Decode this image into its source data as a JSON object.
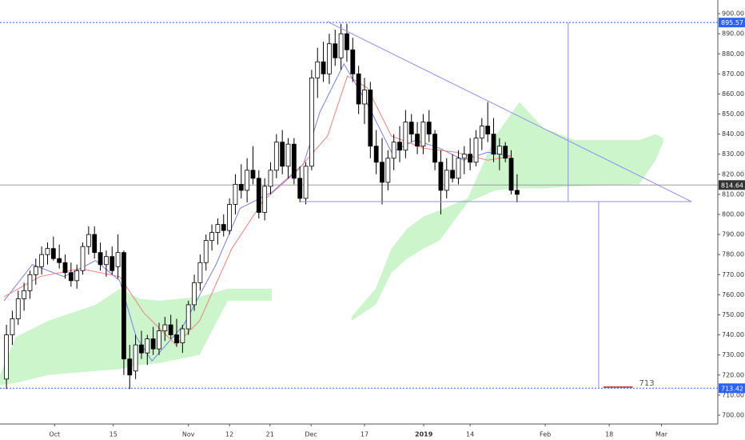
{
  "chart_data": {
    "type": "candlestick",
    "xlim": [
      -1.1,
      121.2
    ],
    "ylim": [
      695.6,
      906.8
    ],
    "xticks": [
      {
        "value": 8.2,
        "label": "Oct"
      },
      {
        "value": 18.2,
        "label": "15"
      },
      {
        "value": 31,
        "label": "Nov"
      },
      {
        "value": 38,
        "label": "12"
      },
      {
        "value": 44.9,
        "label": "21"
      },
      {
        "value": 51.9,
        "label": "Dec"
      },
      {
        "value": 61,
        "label": "17"
      },
      {
        "value": 71.1,
        "label": "2019"
      },
      {
        "value": 79,
        "label": "14"
      },
      {
        "value": 91.8,
        "label": "Feb"
      },
      {
        "value": 102.7,
        "label": "18"
      },
      {
        "value": 111.6,
        "label": "Mar"
      }
    ],
    "yticks": [
      {
        "value": 700,
        "label": "700.00"
      },
      {
        "value": 710,
        "label": "710.00"
      },
      {
        "value": 720,
        "label": "720.00"
      },
      {
        "value": 730,
        "label": "730.00"
      },
      {
        "value": 740,
        "label": "740.00"
      },
      {
        "value": 750,
        "label": "750.00"
      },
      {
        "value": 760,
        "label": "760.00"
      },
      {
        "value": 770,
        "label": "770.00"
      },
      {
        "value": 780,
        "label": "780.00"
      },
      {
        "value": 790,
        "label": "790.00"
      },
      {
        "value": 800,
        "label": "800.00"
      },
      {
        "value": 810,
        "label": "810.00"
      },
      {
        "value": 820,
        "label": "820.00"
      },
      {
        "value": 830,
        "label": "830.00"
      },
      {
        "value": 840,
        "label": "840.00"
      },
      {
        "value": 850,
        "label": "850.00"
      },
      {
        "value": 860,
        "label": "860.00"
      },
      {
        "value": 870,
        "label": "870.00"
      },
      {
        "value": 880,
        "label": "880.00"
      },
      {
        "value": 890,
        "label": "890.00"
      },
      {
        "value": 900,
        "label": "900.00"
      }
    ],
    "up_color": "#ffffff",
    "down_color": "#000000",
    "candles": [
      [
        718,
        745,
        713,
        740
      ],
      [
        740,
        752,
        735,
        748
      ],
      [
        748,
        762,
        745,
        758
      ],
      [
        758,
        766,
        752,
        762
      ],
      [
        762,
        772,
        758,
        770
      ],
      [
        770,
        778,
        765,
        774
      ],
      [
        774,
        784,
        770,
        780
      ],
      [
        780,
        786,
        775,
        783
      ],
      [
        783,
        789,
        777,
        778
      ],
      [
        778,
        785,
        773,
        776
      ],
      [
        776,
        780,
        768,
        771
      ],
      [
        771,
        776,
        764,
        767
      ],
      [
        767,
        775,
        763,
        772
      ],
      [
        772,
        786,
        770,
        784
      ],
      [
        784,
        794,
        780,
        790
      ],
      [
        790,
        794,
        778,
        781
      ],
      [
        781,
        786,
        772,
        775
      ],
      [
        775,
        782,
        769,
        779
      ],
      [
        779,
        784,
        770,
        772
      ],
      [
        774,
        790,
        768,
        781
      ],
      [
        781,
        782,
        720,
        728
      ],
      [
        728,
        735,
        713,
        720
      ],
      [
        722,
        740,
        718,
        735
      ],
      [
        735,
        742,
        728,
        731
      ],
      [
        731,
        740,
        725,
        738
      ],
      [
        738,
        744,
        730,
        733
      ],
      [
        733,
        746,
        730,
        742
      ],
      [
        742,
        749,
        737,
        745
      ],
      [
        745,
        750,
        738,
        740
      ],
      [
        740,
        748,
        734,
        736
      ],
      [
        736,
        745,
        731,
        743
      ],
      [
        743,
        757,
        740,
        755
      ],
      [
        755,
        770,
        752,
        766
      ],
      [
        766,
        780,
        762,
        776
      ],
      [
        776,
        790,
        772,
        787
      ],
      [
        787,
        795,
        782,
        791
      ],
      [
        791,
        798,
        785,
        795
      ],
      [
        795,
        800,
        789,
        792
      ],
      [
        792,
        808,
        790,
        805
      ],
      [
        805,
        820,
        800,
        815
      ],
      [
        815,
        825,
        808,
        812
      ],
      [
        812,
        828,
        806,
        822
      ],
      [
        822,
        834,
        815,
        818
      ],
      [
        818,
        822,
        798,
        801
      ],
      [
        801,
        818,
        797,
        814
      ],
      [
        814,
        826,
        810,
        822
      ],
      [
        822,
        840,
        818,
        836
      ],
      [
        836,
        842,
        820,
        824
      ],
      [
        824,
        838,
        818,
        835
      ],
      [
        835,
        838,
        815,
        818
      ],
      [
        818,
        824,
        806,
        808
      ],
      [
        808,
        826,
        805,
        824
      ],
      [
        824,
        872,
        822,
        868
      ],
      [
        868,
        883,
        858,
        876
      ],
      [
        876,
        886,
        866,
        870
      ],
      [
        870,
        890,
        865,
        885
      ],
      [
        885,
        892,
        874,
        878
      ],
      [
        878,
        895,
        872,
        890
      ],
      [
        890,
        895,
        876,
        882
      ],
      [
        882,
        888,
        866,
        870
      ],
      [
        870,
        874,
        850,
        855
      ],
      [
        855,
        868,
        845,
        862
      ],
      [
        862,
        866,
        828,
        834
      ],
      [
        834,
        842,
        820,
        826
      ],
      [
        826,
        838,
        805,
        816
      ],
      [
        816,
        832,
        812,
        828
      ],
      [
        828,
        840,
        822,
        836
      ],
      [
        836,
        844,
        826,
        832
      ],
      [
        832,
        852,
        828,
        846
      ],
      [
        846,
        850,
        836,
        840
      ],
      [
        840,
        846,
        830,
        834
      ],
      [
        834,
        850,
        830,
        846
      ],
      [
        846,
        852,
        836,
        840
      ],
      [
        840,
        842,
        822,
        826
      ],
      [
        826,
        832,
        800,
        812
      ],
      [
        812,
        828,
        808,
        822
      ],
      [
        822,
        830,
        816,
        818
      ],
      [
        818,
        832,
        815,
        828
      ],
      [
        828,
        834,
        820,
        830
      ],
      [
        830,
        838,
        822,
        826
      ],
      [
        826,
        842,
        824,
        838
      ],
      [
        838,
        848,
        832,
        844
      ],
      [
        844,
        856,
        836,
        840
      ],
      [
        840,
        848,
        826,
        830
      ],
      [
        830,
        838,
        822,
        834
      ],
      [
        834,
        836,
        826,
        828
      ],
      [
        828,
        832,
        810,
        812
      ],
      [
        812,
        820,
        806,
        810
      ]
    ],
    "lines": [
      {
        "color": "#7b7bf0",
        "x": [
          -0.4,
          4.4,
          9.8,
          15.2,
          19.3,
          22.1,
          24.8,
          30.2,
          35.7,
          39.8,
          45.2,
          50.6,
          53.4,
          57.5,
          61.5,
          65.6,
          69.7,
          73.8,
          77.9,
          82,
          86
        ],
        "values": [
          757,
          775,
          769,
          777,
          767,
          739,
          727,
          745,
          775,
          803,
          811,
          825,
          851,
          875,
          855,
          831,
          837,
          833,
          827,
          831,
          829
        ]
      },
      {
        "color": "#f08080",
        "x": [
          -0.4,
          5.7,
          12.5,
          19.3,
          23.4,
          28.9,
          32.9,
          38.4,
          43.8,
          49.3,
          54.7,
          58.1,
          61.5,
          65.6,
          71.1,
          76.5,
          82,
          86
        ],
        "values": [
          759,
          769,
          773,
          769,
          751,
          735,
          747,
          783,
          807,
          821,
          839,
          869,
          863,
          839,
          833,
          831,
          827,
          829
        ]
      }
    ],
    "clouds": [
      {
        "color": "#ccf5cc",
        "x": [
          -1.1,
          1.6,
          7.1,
          15.2,
          19.3,
          22.7,
          26.1,
          32.9,
          37.7,
          45.2
        ],
        "upper": [
          720,
          739,
          747,
          755,
          763,
          758,
          757,
          759,
          763,
          763
        ],
        "lower": [
          715,
          716,
          720,
          722,
          723,
          725,
          726,
          730,
          757,
          757
        ]
      },
      {
        "color": "#ccf5cc",
        "x": [
          58.8,
          62.9,
          65.6,
          68.3,
          71.1,
          73.8,
          78.6,
          83.3,
          87.4,
          91.5,
          96.9,
          107.8,
          110.6,
          111.9
        ],
        "upper": [
          749,
          763,
          783,
          793,
          799,
          802,
          808,
          839,
          856,
          843,
          837,
          837,
          840,
          838
        ],
        "lower": [
          747,
          755,
          771,
          778,
          783,
          787,
          806,
          812,
          813,
          813,
          814,
          815,
          827,
          836
        ]
      }
    ],
    "levels": [
      {
        "value": 895.57,
        "color": "#2962ff",
        "style": "dotted",
        "label_bg": "#2962ff"
      },
      {
        "value": 814.64,
        "color": "#9e9e9e",
        "style": "solid",
        "label_bg": "#333333"
      },
      {
        "value": 713.42,
        "color": "#2962ff",
        "style": "dotted",
        "label_bg": "#2962ff"
      }
    ],
    "drawings": [
      {
        "color": "#8c8cf0",
        "x": [
          54.7,
          116.7
        ],
        "y": [
          896,
          806.4
        ]
      },
      {
        "color": "#8c8cf0",
        "x": [
          50,
          116.7
        ],
        "y": [
          806.4,
          806.4
        ]
      },
      {
        "color": "#8c8cf0",
        "x": [
          95.7,
          95.7
        ],
        "y": [
          895.6,
          806.4
        ]
      },
      {
        "color": "#8c8cf0",
        "x": [
          100.9,
          100.9
        ],
        "y": [
          806.4,
          713.4
        ]
      }
    ],
    "target": {
      "value": 713,
      "color": "#b22222",
      "x": [
        101.7,
        106.7
      ],
      "y": 714
    }
  }
}
